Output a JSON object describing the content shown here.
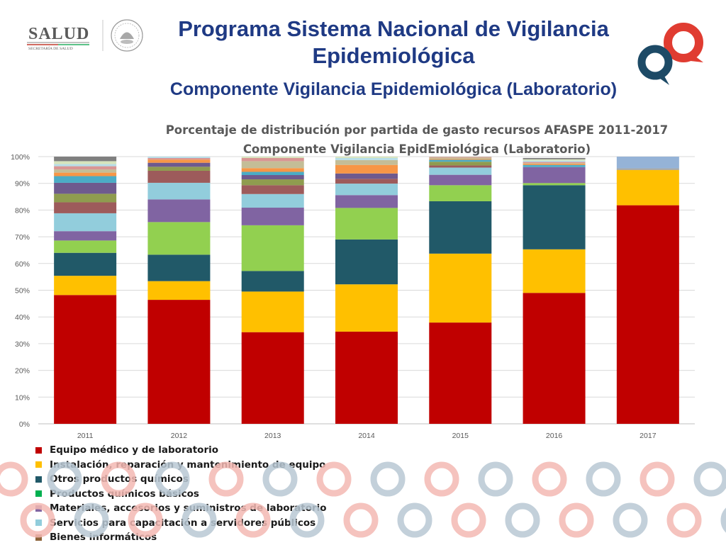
{
  "header": {
    "title": "Programa Sistema Nacional de Vigilancia Epidemiológica",
    "subtitle": "Componente Vigilancia Epidemiológica (Laboratorio)",
    "logo_text": "SALUD",
    "logo_subtext": "SECRETARÍA DE SALUD"
  },
  "colors": {
    "title": "#1f3a84",
    "brand_red": "#e03c31",
    "brand_navy": "#1d4a66"
  },
  "chart_data": {
    "type": "bar",
    "stacked": true,
    "percent": true,
    "title": "Porcentaje de distribución por partida de gasto recursos AFASPE  2011-2017",
    "subtitle": "Componente Vigilancia EpidEmiológica (Laboratorio)",
    "xlabel": "",
    "ylabel": "",
    "ylim": [
      0,
      100
    ],
    "yticks": [
      "0%",
      "10%",
      "20%",
      "30%",
      "40%",
      "50%",
      "60%",
      "70%",
      "80%",
      "90%",
      "100%"
    ],
    "grid": true,
    "legend_position": "bottom-left",
    "categories": [
      "2011",
      "2012",
      "2013",
      "2014",
      "2015",
      "2016",
      "2017"
    ],
    "series": [
      {
        "name": "Equipo médico y de laboratorio",
        "color": "#c00000",
        "values": [
          48.2,
          46.4,
          34.3,
          34.5,
          37.9,
          49,
          81.8
        ]
      },
      {
        "name": "Instalación, reparación y mantenimiento de equipo",
        "color": "#ffc000",
        "values": [
          7.2,
          7,
          15.2,
          17.7,
          25.8,
          16.3,
          13.2
        ]
      },
      {
        "name": "Otros productos químicos",
        "color": "#215968",
        "values": [
          8.6,
          9.9,
          7.7,
          16.8,
          19.6,
          24,
          0
        ]
      },
      {
        "name": "Productos químicos básicos",
        "color": "#00b050",
        "values": [
          0,
          0,
          0,
          0,
          0,
          0,
          0
        ]
      },
      {
        "name": "Materiales, accesorios y suministros de laboratorio",
        "color": "#8064a2",
        "values": [
          3.5,
          8.5,
          6.6,
          4.8,
          3.9,
          6,
          0
        ]
      },
      {
        "name": "Servicios para capacitación a servidores públicos",
        "color": "#92cddc",
        "values": [
          6.7,
          6.2,
          5.1,
          4.3,
          2.7,
          0,
          0
        ]
      },
      {
        "name": "Bienes informáticos",
        "color": "#8c6239",
        "values": [
          0,
          0,
          0,
          0,
          0,
          0,
          0
        ]
      }
    ],
    "other_segments": [
      {
        "color": "#92d050",
        "values": [
          4.6,
          12.2,
          17.1,
          11.8,
          6,
          0.8,
          0
        ]
      },
      {
        "color": "#a5a5a5",
        "values": [
          0,
          0,
          0,
          0,
          0,
          0,
          0.6
        ]
      },
      {
        "color": "#95b3d7",
        "values": [
          0,
          0,
          0,
          0,
          0,
          0,
          4.4
        ]
      },
      {
        "color": "#9d5b5b",
        "values": [
          4.1,
          4.5,
          3.3,
          1.8,
          0.8,
          0,
          0
        ]
      },
      {
        "color": "#8f9c4f",
        "values": [
          3.2,
          1.5,
          2.2,
          0,
          1.4,
          0,
          0
        ]
      },
      {
        "color": "#6e5a8e",
        "values": [
          4.1,
          1.5,
          1.6,
          2,
          0,
          0,
          0
        ]
      },
      {
        "color": "#4bacc6",
        "values": [
          2.5,
          0,
          1.2,
          0,
          0.7,
          0.8,
          0
        ]
      },
      {
        "color": "#f79646",
        "values": [
          1.3,
          1.2,
          1.4,
          3.2,
          0.3,
          0.5,
          0
        ]
      },
      {
        "color": "#c4bd97",
        "values": [
          1.2,
          0,
          2.6,
          1.8,
          0.5,
          0.2,
          0
        ]
      },
      {
        "color": "#d99694",
        "values": [
          1.2,
          0.6,
          1.2,
          0,
          0.3,
          0.4,
          0
        ]
      },
      {
        "color": "#b7dee8",
        "values": [
          0.8,
          0.5,
          0,
          0.8,
          0,
          0.5,
          0
        ]
      },
      {
        "color": "#d7e4bd",
        "values": [
          1.1,
          0,
          0.5,
          0.5,
          0.1,
          0.5,
          0
        ]
      },
      {
        "color": "#7f7f7f",
        "values": [
          1.7,
          0,
          0,
          0,
          0,
          0.5,
          0
        ]
      }
    ]
  }
}
